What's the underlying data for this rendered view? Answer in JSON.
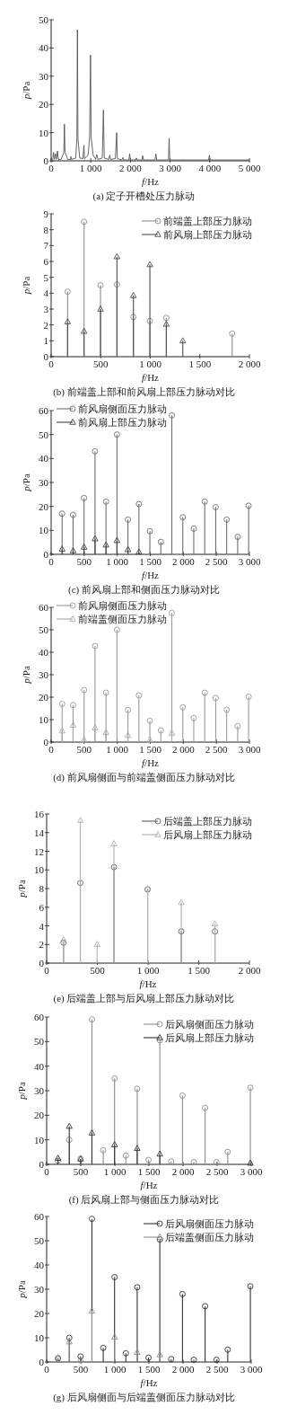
{
  "chart_data": [
    {
      "type": "line",
      "title": "(a) 定子开槽处压力脉动",
      "xlabel": "f/Hz",
      "ylabel": "p/Pa",
      "xlim": [
        0,
        5000
      ],
      "ylim": [
        0,
        50
      ],
      "xticks": [
        {
          "value": 0,
          "label": "0"
        },
        {
          "value": 1000,
          "label": "1 000"
        },
        {
          "value": 2000,
          "label": "2 000"
        },
        {
          "value": 3000,
          "label": "3 000"
        },
        {
          "value": 4000,
          "label": "4 000"
        },
        {
          "value": 5000,
          "label": "5 000"
        }
      ],
      "yticks": [
        0,
        10,
        20,
        30,
        40,
        50
      ],
      "series": [
        {
          "color": "#555555",
          "x": [
            0,
            40,
            60,
            80,
            110,
            130,
            160,
            180,
            250,
            320,
            335,
            350,
            420,
            490,
            500,
            510,
            620,
            650,
            663,
            676,
            720,
            800,
            828,
            840,
            930,
            970,
            993,
            1010,
            1060,
            1120,
            1150,
            1180,
            1290,
            1318,
            1340,
            1450,
            1480,
            1500,
            1620,
            1652,
            1670,
            1780,
            1810,
            1830,
            1960,
            1980,
            2000,
            2130,
            2150,
            2170,
            2290,
            2310,
            2330,
            2620,
            2640,
            2660,
            2960,
            2975,
            2990,
            3300,
            3310,
            3320,
            3970,
            3990,
            4010,
            5000
          ],
          "values": [
            0,
            0.5,
            3,
            0.5,
            2.5,
            0.5,
            3.5,
            0.5,
            0.5,
            3,
            13,
            3,
            0.5,
            0.5,
            1.5,
            0.5,
            1,
            8,
            46.5,
            8,
            1,
            0.8,
            5.5,
            0.8,
            2,
            8,
            37.5,
            8,
            2,
            0.5,
            2.2,
            0.5,
            1,
            18,
            1,
            0.5,
            2,
            0.5,
            0.8,
            10,
            0.8,
            0.3,
            1.2,
            0.3,
            0.3,
            2.5,
            0.3,
            0.3,
            1,
            0.3,
            0.3,
            1.8,
            0.3,
            0.3,
            2.5,
            0.3,
            0.3,
            8,
            0.3,
            0.3,
            0.5,
            0.3,
            0.3,
            2,
            0.3,
            0.3
          ]
        }
      ]
    },
    {
      "type": "lollipop",
      "title": "(b) 前端盖上部和前风扇上部压力脉动对比",
      "xlabel": "f/Hz",
      "ylabel": "p/Pa",
      "xlim": [
        0,
        2000
      ],
      "ylim": [
        0,
        9
      ],
      "xticks": [
        {
          "value": 0,
          "label": "0"
        },
        {
          "value": 500,
          "label": "500"
        },
        {
          "value": 1000,
          "label": "1 000"
        },
        {
          "value": 1500,
          "label": "1 500"
        },
        {
          "value": 2000,
          "label": "2 000"
        }
      ],
      "yticks": [
        0,
        1,
        2,
        3,
        4,
        5,
        6,
        7,
        8,
        9
      ],
      "legend": "top right",
      "series": [
        {
          "name": "前端盖上部压力脉动",
          "color": "#8c8c8c",
          "marker": "circle",
          "x": [
            166,
            332,
            498,
            664,
            830,
            996,
            1162,
            1826
          ],
          "values": [
            4.1,
            8.5,
            4.5,
            4.55,
            2.5,
            2.25,
            2.45,
            1.45
          ]
        },
        {
          "name": "前风扇上部压力脉动",
          "color": "#4d4d4d",
          "marker": "triangle",
          "x": [
            166,
            332,
            498,
            664,
            830,
            996,
            1162,
            1328
          ],
          "values": [
            2.2,
            1.6,
            3.0,
            6.3,
            3.85,
            5.8,
            2.05,
            1.0
          ]
        }
      ]
    },
    {
      "type": "lollipop",
      "title": "(c) 前风扇上部和侧面压力脉动对比",
      "xlabel": "f/Hz",
      "ylabel": "p/Pa",
      "xlim": [
        0,
        3000
      ],
      "ylim": [
        0,
        60
      ],
      "xticks": [
        {
          "value": 0,
          "label": "0"
        },
        {
          "value": 500,
          "label": "500"
        },
        {
          "value": 1000,
          "label": "1 000"
        },
        {
          "value": 1500,
          "label": "1 500"
        },
        {
          "value": 2000,
          "label": "2 000"
        },
        {
          "value": 2500,
          "label": "2 500"
        },
        {
          "value": 3000,
          "label": "3 000"
        }
      ],
      "yticks": [
        0,
        10,
        20,
        30,
        40,
        50,
        60
      ],
      "legend": "top left",
      "series": [
        {
          "name": "前风扇侧面压力脉动",
          "color": "#6e6e6e",
          "marker": "circle",
          "x": [
            166,
            332,
            498,
            664,
            830,
            996,
            1162,
            1328,
            1494,
            1660,
            1826,
            1992,
            2158,
            2324,
            2490,
            2656,
            2822,
            2988
          ],
          "values": [
            17,
            16.5,
            23.5,
            43,
            22,
            50,
            14.5,
            21,
            9.7,
            5.2,
            58,
            15.5,
            10.7,
            22,
            19.7,
            14.5,
            7.3,
            20.3
          ]
        },
        {
          "name": "前风扇上部压力脉动",
          "color": "#404040",
          "marker": "triangle",
          "x": [
            166,
            332,
            498,
            664,
            830,
            996,
            1162,
            1328
          ],
          "values": [
            2.2,
            1.5,
            3.0,
            6.5,
            3.9,
            5.8,
            2.0,
            1.0
          ]
        }
      ]
    },
    {
      "type": "lollipop",
      "title": "(d) 前风扇侧面与前端盖侧面压力脉动对比",
      "xlabel": "f/Hz",
      "ylabel": "p/Pa",
      "xlim": [
        0,
        3000
      ],
      "ylim": [
        0,
        60
      ],
      "xticks": [
        {
          "value": 0,
          "label": "0"
        },
        {
          "value": 500,
          "label": "500"
        },
        {
          "value": 1000,
          "label": "1 000"
        },
        {
          "value": 1500,
          "label": "1 500"
        },
        {
          "value": 2000,
          "label": "2 000"
        },
        {
          "value": 2500,
          "label": "2 500"
        },
        {
          "value": 3000,
          "label": "3 000"
        }
      ],
      "yticks": [
        0,
        10,
        20,
        30,
        40,
        50,
        60
      ],
      "legend": "top left",
      "series": [
        {
          "name": "前风扇侧面压力脉动",
          "color": "#9a9a9a",
          "marker": "circle",
          "x": [
            166,
            332,
            498,
            664,
            830,
            996,
            1162,
            1328,
            1494,
            1660,
            1826,
            1992,
            2158,
            2324,
            2490,
            2656,
            2822,
            2988
          ],
          "values": [
            17,
            16.5,
            23.2,
            42.8,
            22,
            50,
            14.3,
            20.8,
            9.5,
            5.2,
            57.5,
            15.5,
            10.7,
            22,
            19.6,
            14.4,
            7.1,
            20.2
          ]
        },
        {
          "name": "前端盖侧面压力脉动",
          "color": "#a8a8a8",
          "marker": "triangle",
          "x": [
            166,
            332,
            498,
            664,
            830,
            1162,
            1494,
            1826
          ],
          "values": [
            5,
            7.5,
            1.0,
            6.3,
            4.3,
            3.0,
            1.0,
            4.0
          ]
        }
      ]
    },
    {
      "type": "lollipop",
      "title": "(e) 后端盖上部与后风扇上部压力脉动对比",
      "xlabel": "f/Hz",
      "ylabel": "p/Pa",
      "xlim": [
        0,
        2000
      ],
      "ylim": [
        0,
        16
      ],
      "xticks": [
        {
          "value": 0,
          "label": "0"
        },
        {
          "value": 500,
          "label": "500"
        },
        {
          "value": 1000,
          "label": "1 000"
        },
        {
          "value": 1500,
          "label": "1 500"
        },
        {
          "value": 2000,
          "label": "2 000"
        }
      ],
      "yticks": [
        0,
        2,
        4,
        6,
        8,
        10,
        12,
        14,
        16
      ],
      "legend": "top right",
      "series": [
        {
          "name": "后端盖上部压力脉动",
          "color": "#606060",
          "marker": "circle",
          "x": [
            166,
            332,
            664,
            996,
            1328,
            1660
          ],
          "values": [
            2.2,
            8.6,
            10.3,
            7.9,
            3.4,
            3.4
          ]
        },
        {
          "name": "后风扇上部压力脉动",
          "color": "#b0b0b0",
          "marker": "triangle",
          "x": [
            166,
            332,
            498,
            664,
            996,
            1328,
            1660
          ],
          "values": [
            2.5,
            15.3,
            2.0,
            12.8,
            8.0,
            6.5,
            4.2
          ]
        }
      ]
    },
    {
      "type": "lollipop",
      "title": "(f) 后风扇上部与侧面压力脉动对比",
      "xlabel": "f/Hz",
      "ylabel": "p/Pa",
      "xlim": [
        0,
        3000
      ],
      "ylim": [
        0,
        60
      ],
      "xticks": [
        {
          "value": 0,
          "label": "0"
        },
        {
          "value": 500,
          "label": "500"
        },
        {
          "value": 1000,
          "label": "1 000"
        },
        {
          "value": 1500,
          "label": "1 500"
        },
        {
          "value": 2000,
          "label": "2 000"
        },
        {
          "value": 2500,
          "label": "2 500"
        },
        {
          "value": 3000,
          "label": "3 000"
        }
      ],
      "yticks": [
        0,
        10,
        20,
        30,
        40,
        50,
        60
      ],
      "legend": "top right",
      "series": [
        {
          "name": "后风扇侧面压力脉动",
          "color": "#8c8c8c",
          "marker": "circle",
          "x": [
            166,
            332,
            498,
            664,
            830,
            996,
            1162,
            1328,
            1494,
            1660,
            1826,
            1992,
            2158,
            2324,
            2490,
            2656,
            2988
          ],
          "values": [
            1.5,
            10,
            2.3,
            59,
            5.8,
            35,
            3.6,
            30.8,
            1.8,
            50.5,
            1.2,
            28,
            0.9,
            23,
            0.9,
            5.1,
            31.2
          ]
        },
        {
          "name": "后风扇上部压力脉动",
          "color": "#333333",
          "marker": "triangle",
          "x": [
            166,
            332,
            498,
            664,
            996,
            1328,
            1660,
            2988
          ],
          "values": [
            2.5,
            15.5,
            2.2,
            12.8,
            8.0,
            6.5,
            4.2,
            0.5
          ]
        }
      ]
    },
    {
      "type": "lollipop",
      "title": "(g) 后风扇侧面与后端盖侧面压力脉动对比",
      "xlabel": "f/Hz",
      "ylabel": "p/Pa",
      "xlim": [
        0,
        3000
      ],
      "ylim": [
        0,
        60
      ],
      "xticks": [
        {
          "value": 0,
          "label": "0"
        },
        {
          "value": 500,
          "label": "500"
        },
        {
          "value": 1000,
          "label": "1 000"
        },
        {
          "value": 1500,
          "label": "1 500"
        },
        {
          "value": 2000,
          "label": "2 000"
        },
        {
          "value": 2500,
          "label": "2 500"
        },
        {
          "value": 3000,
          "label": "3 000"
        }
      ],
      "yticks": [
        0,
        10,
        20,
        30,
        40,
        50,
        60
      ],
      "legend": "top right",
      "series": [
        {
          "name": "后风扇侧面压力脉动",
          "color": "#333333",
          "marker": "circle",
          "x": [
            166,
            332,
            498,
            664,
            830,
            996,
            1162,
            1328,
            1494,
            1660,
            1826,
            1992,
            2158,
            2324,
            2490,
            2656,
            2988
          ],
          "values": [
            1.5,
            10,
            2.3,
            59,
            5.8,
            35,
            3.6,
            30.8,
            1.8,
            50.5,
            1.2,
            28,
            0.9,
            23,
            0.9,
            5.1,
            31.2
          ]
        },
        {
          "name": "后端盖侧面压力脉动",
          "color": "#8c8c8c",
          "marker": "triangle",
          "x": [
            166,
            332,
            498,
            664,
            996,
            1328,
            1660
          ],
          "values": [
            1.8,
            8.3,
            1.0,
            21,
            10.3,
            4.0,
            3.0
          ]
        }
      ]
    }
  ]
}
